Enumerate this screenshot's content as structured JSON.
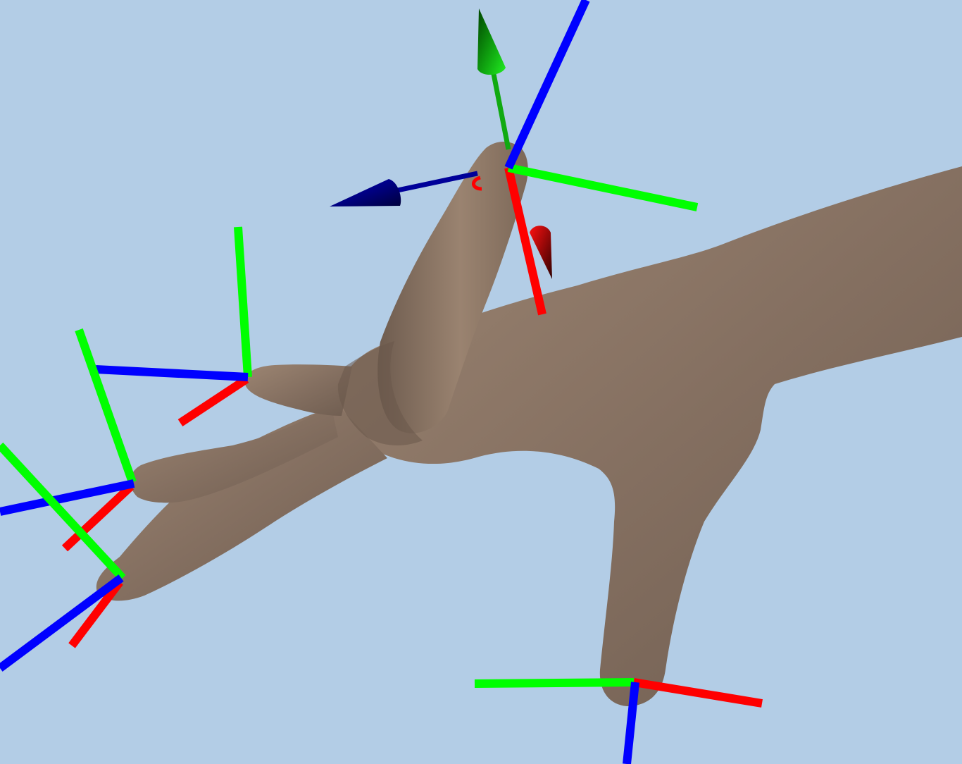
{
  "scene": {
    "name": "3d-hand-viewport",
    "background_color": "#b3cde6",
    "skin_color": "#8a7462",
    "axis_colors": {
      "x": "#ff0000",
      "y": "#00ff00",
      "z": "#0000ff"
    },
    "gizmo_colors": {
      "x": "#cc0000",
      "y": "#00cc00",
      "z": "#000099"
    },
    "frames": [
      "thumb-tip-frame",
      "index-tip-frame",
      "middle-tip-frame",
      "ring-tip-frame",
      "little-tip-frame"
    ]
  }
}
